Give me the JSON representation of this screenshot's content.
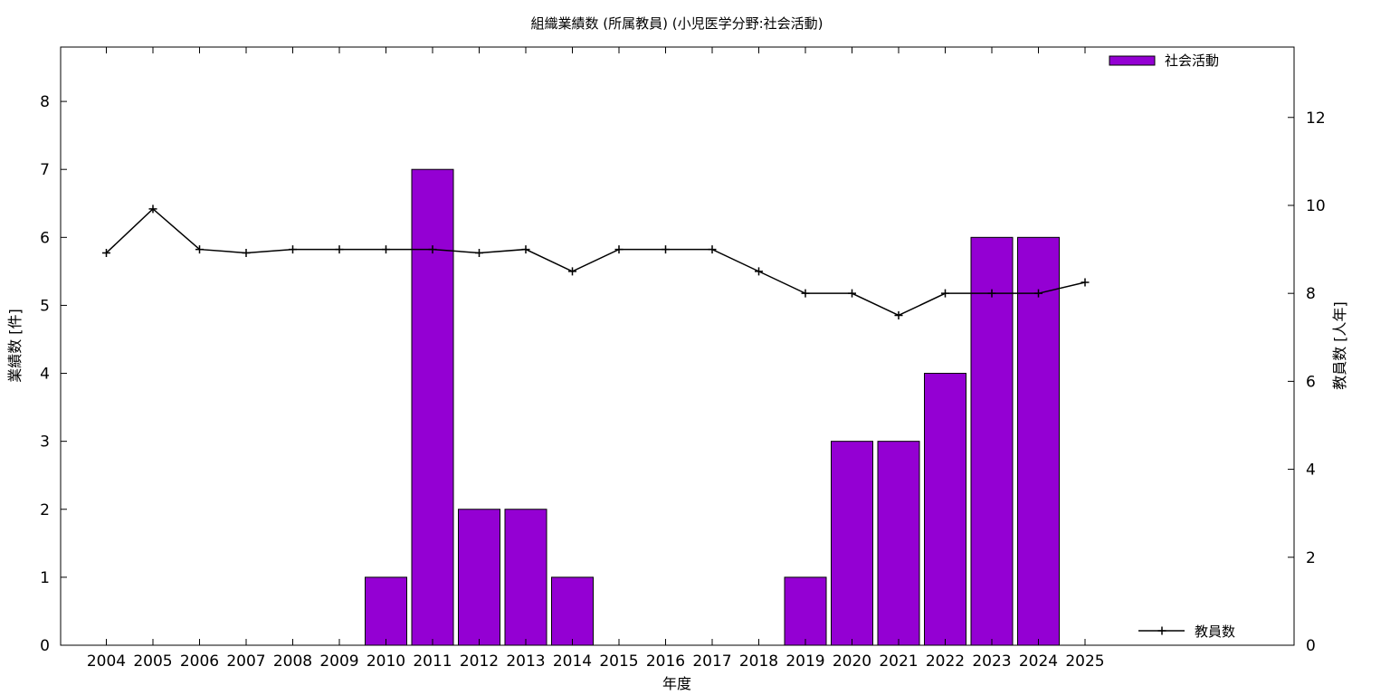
{
  "chart_data": {
    "type": "bar",
    "title": "組織業績数 (所属教員) (小児医学分野:社会活動)",
    "xlabel": "年度",
    "ylabel": "業績数 [件]",
    "y2label": "教員数 [人年]",
    "categories": [
      "2004",
      "2005",
      "2006",
      "2007",
      "2008",
      "2009",
      "2010",
      "2011",
      "2012",
      "2013",
      "2014",
      "2015",
      "2016",
      "2017",
      "2018",
      "2019",
      "2020",
      "2021",
      "2022",
      "2023",
      "2024",
      "2025"
    ],
    "ylim": [
      0,
      8.8
    ],
    "y2lim": [
      0,
      13.6
    ],
    "yticks": [
      0,
      1,
      2,
      3,
      4,
      5,
      6,
      7,
      8
    ],
    "y2ticks": [
      0,
      2,
      4,
      6,
      8,
      10,
      12
    ],
    "grid": false,
    "series": [
      {
        "name": "社会活動",
        "type": "bar",
        "axis": "left",
        "color": "#9400d3",
        "values": [
          0,
          0,
          0,
          0,
          0,
          0,
          1,
          7,
          2,
          2,
          1,
          0,
          0,
          0,
          0,
          1,
          3,
          3,
          4,
          6,
          6,
          null
        ]
      },
      {
        "name": "教員数",
        "type": "line",
        "axis": "right",
        "color": "#000000",
        "values": [
          8.92,
          9.92,
          9.0,
          8.92,
          9.0,
          9.0,
          9.0,
          9.0,
          8.92,
          9.0,
          8.5,
          9.0,
          9.0,
          9.0,
          8.5,
          8.0,
          8.0,
          7.5,
          8.0,
          8.0,
          8.0,
          8.25
        ]
      }
    ],
    "legend": [
      "top-right",
      "bottom-right"
    ]
  }
}
